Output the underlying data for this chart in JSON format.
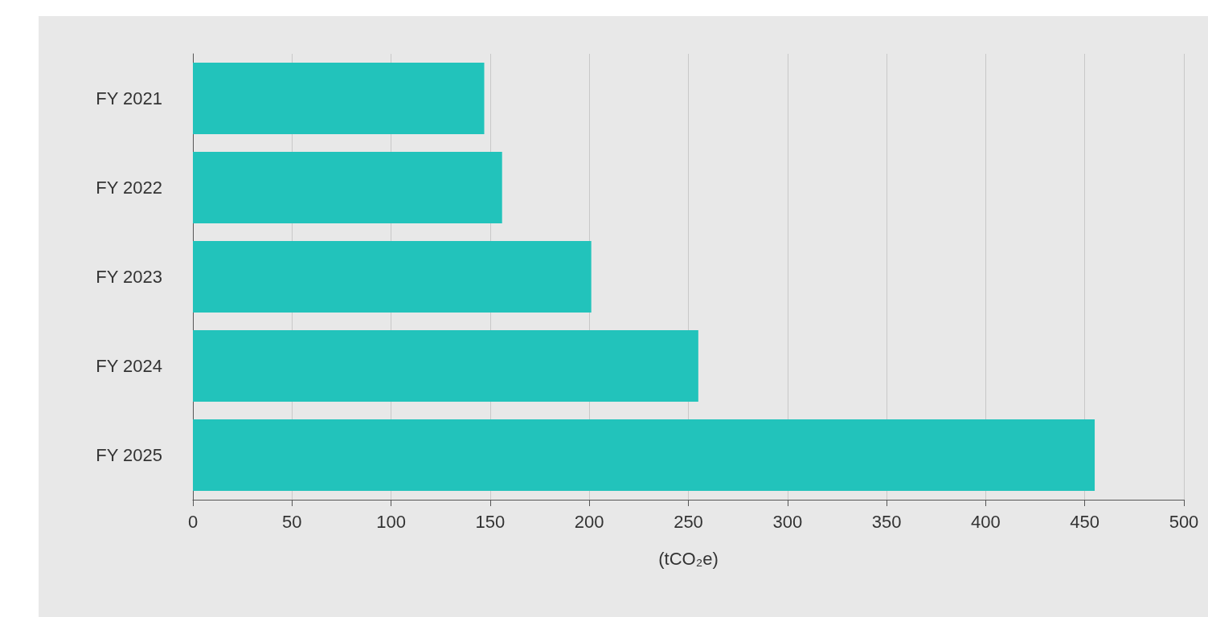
{
  "chart_data": {
    "type": "bar",
    "orientation": "horizontal",
    "categories": [
      "FY 2021",
      "FY 2022",
      "FY 2023",
      "FY 2024",
      "FY 2025"
    ],
    "values": [
      147,
      156,
      201,
      255,
      455
    ],
    "color": "#22c3bb",
    "xlabel": "(tCO₂e)",
    "xlim": [
      0,
      500
    ],
    "xticks": [
      0,
      50,
      100,
      150,
      200,
      250,
      300,
      350,
      400,
      450,
      500
    ],
    "grid": "x"
  }
}
